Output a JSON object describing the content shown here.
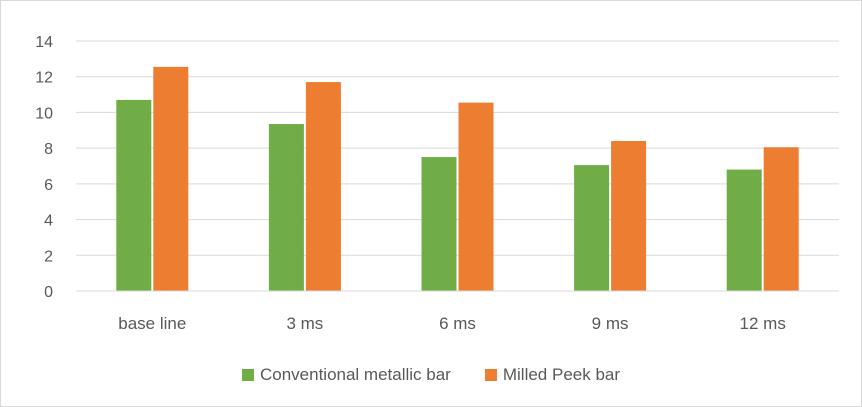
{
  "chart_data": {
    "type": "bar",
    "title": "",
    "xlabel": "",
    "ylabel": "",
    "categories": [
      "base line",
      "3 ms",
      "6 ms",
      "9 ms",
      "12 ms"
    ],
    "ylim": [
      0,
      14
    ],
    "yticks": [
      "0",
      "2",
      "4",
      "6",
      "8",
      "10",
      "12",
      "14"
    ],
    "grid": true,
    "legend_position": "bottom",
    "series": [
      {
        "name": "Conventional metallic bar",
        "color": "#70ad47",
        "values": [
          10.7,
          9.35,
          7.5,
          7.05,
          6.8
        ]
      },
      {
        "name": "Milled Peek bar",
        "color": "#ed7d31",
        "values": [
          12.55,
          11.7,
          10.55,
          8.4,
          8.05
        ]
      }
    ]
  }
}
